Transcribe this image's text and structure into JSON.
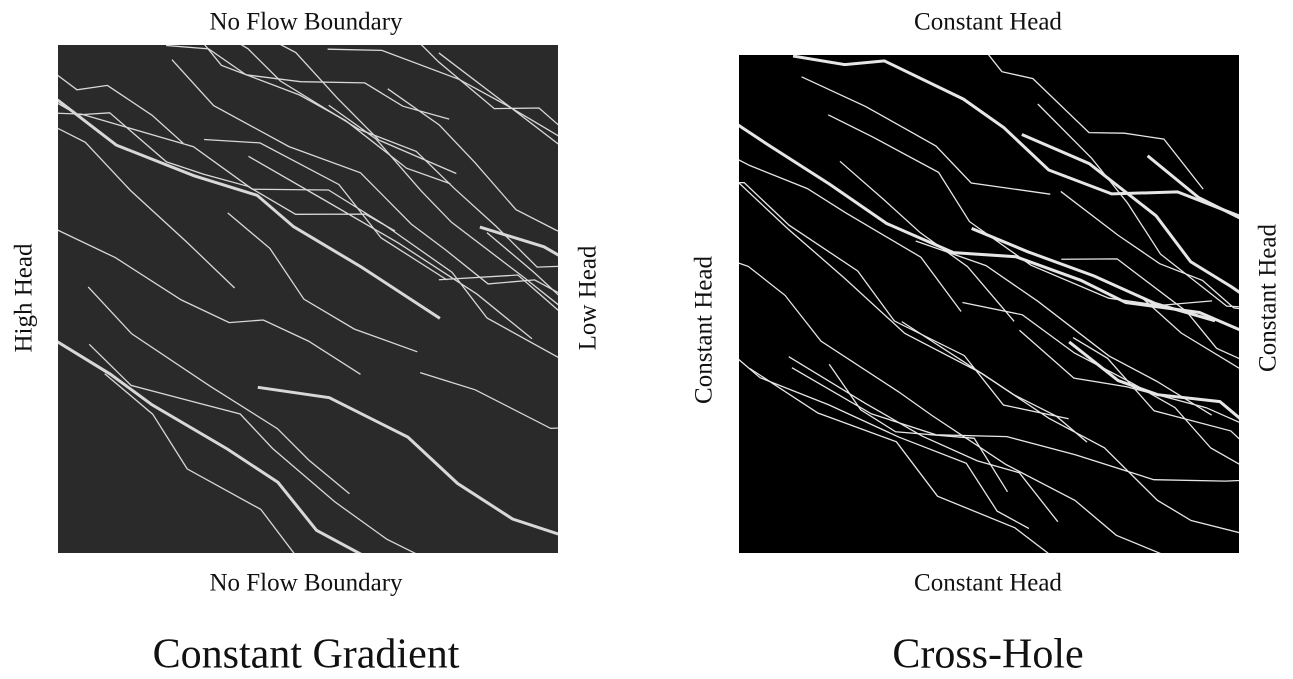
{
  "panels": [
    {
      "top": "No Flow Boundary",
      "bottom": "No Flow Boundary",
      "left": "High Head",
      "right": "Low Head",
      "caption": "Constant Gradient"
    },
    {
      "top": "Constant Head",
      "bottom": "Constant Head",
      "left": "Constant Head",
      "right": "Constant Head",
      "caption": "Cross-Hole"
    }
  ]
}
